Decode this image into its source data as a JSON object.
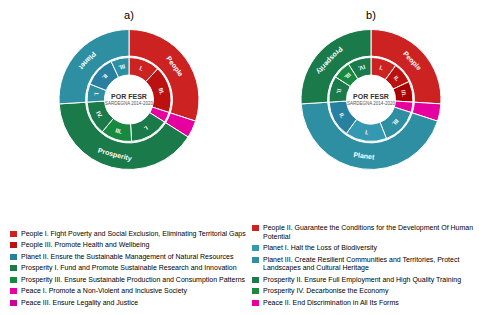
{
  "chart_data": [
    {
      "type": "pie",
      "title": "a)",
      "rings": [
        {
          "categories": [
            "People",
            null,
            "Prosperity",
            "Planet"
          ],
          "values": [
            30,
            4,
            40,
            26
          ],
          "colors": [
            "#cc2222",
            "#e600a0",
            "#1a7a4a",
            "#2e8fa3"
          ]
        },
        {
          "categories": [
            "I.",
            "III.",
            null,
            "I.",
            "III.",
            "IV.",
            "I.",
            "II.",
            "III."
          ],
          "values": [
            12,
            18,
            4,
            15,
            12,
            13,
            7,
            12,
            7
          ],
          "colors": [
            "#cc2222",
            "#bb1111",
            "#e600a0",
            "#1a7a4a",
            "#178a40",
            "#1a7a4a",
            "#2e8fa3",
            "#2880a0",
            "#2e8fa3"
          ]
        }
      ],
      "annotations": [
        "POR FESR",
        "SARDEGNA 2014-2020"
      ]
    },
    {
      "type": "pie",
      "title": "b)",
      "rings": [
        {
          "categories": [
            "People",
            null,
            "Planet",
            "Prosperity"
          ],
          "values": [
            26,
            4,
            44,
            26
          ],
          "colors": [
            "#cc2222",
            "#e600a0",
            "#2e8fa3",
            "#1a7a4a"
          ]
        },
        {
          "categories": [
            "I.",
            "II.",
            "III.",
            null,
            "III.",
            "I.",
            "II.",
            "II.",
            "III.",
            "IV."
          ],
          "values": [
            10,
            8,
            8,
            4,
            14,
            16,
            14,
            10,
            7,
            9
          ],
          "colors": [
            "#cc2222",
            "#bb1111",
            "#aa0000",
            "#e600a0",
            "#2e8fa3",
            "#3498b0",
            "#2880a0",
            "#1a7a4a",
            "#178a40",
            "#1a7a4a"
          ]
        }
      ],
      "annotations": [
        "POR FESR",
        "SARDEGNA 2014-2020"
      ]
    }
  ],
  "legends": [
    {
      "legend": "lower left",
      "entries": [
        {
          "text": "People I. Fight Poverty and Social Exclusion, Eliminating Territorial Gaps",
          "color": "#cc2222"
        },
        {
          "text": "People III. Promote Health and Wellbeing",
          "color": "#bb1111"
        },
        {
          "text": "Planet II. Ensure the Sustainable Management of Natural Resources",
          "color": "#2880a0"
        },
        {
          "text": "Prosperity I. Fund and Promote Sustainable Research and Innovation",
          "color": "#1a7a4a"
        },
        {
          "text": "Prosperity III. Ensure Sustainable Production and Consumption Patterns",
          "color": "#178a40"
        },
        {
          "text": "Peace I. Promote a Non-Violent and Inclusive Society",
          "color": "#e600a0"
        },
        {
          "text": "Peace III. Ensure Legality and Justice",
          "color": "#cc0099"
        }
      ]
    },
    {
      "legend": "lower right",
      "entries": [
        {
          "text": "People II. Guarantee the Conditions for the Development Of Human Potential",
          "color": "#cc2222"
        },
        {
          "text": "Planet I. Halt the Loss of Biodiversity",
          "color": "#3498b0"
        },
        {
          "text": "Planet III. Create Resilient Communities and Territories, Protect Landscapes and Cultural Heritage",
          "color": "#2e8fa3"
        },
        {
          "text": "Prosperity II. Ensure Full Employment and High Quality Training",
          "color": "#1a7a4a"
        },
        {
          "text": "Prosperity IV. Decarbonise the Economy",
          "color": "#178a40"
        },
        {
          "text": "Peace II. End Discrimination in All Its Forms",
          "color": "#e600a0"
        }
      ]
    }
  ]
}
